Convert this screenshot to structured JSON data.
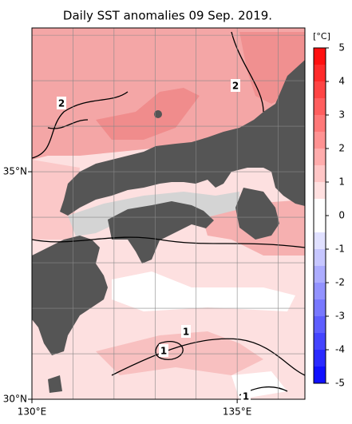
{
  "chart_data": {
    "type": "map",
    "title": "Daily SST anomalies 09 Sep. 2019.",
    "xlim": [
      130,
      136.65
    ],
    "ylim": [
      30,
      38.16
    ],
    "xticks": [
      {
        "value": 130,
        "label": "130°E"
      },
      {
        "value": 135,
        "label": "135°E"
      }
    ],
    "yticks": [
      {
        "value": 30,
        "label": "30°N"
      },
      {
        "value": 35,
        "label": "35°N"
      }
    ],
    "xgrid": [
      131,
      132,
      133,
      134,
      136
    ],
    "ygrid": [
      31,
      32,
      33,
      34,
      36,
      37,
      38
    ],
    "contour_labels": [
      "2",
      "2",
      "1",
      "1",
      "1"
    ],
    "colorbar": {
      "label": "[°C]",
      "range": [
        -5,
        5
      ],
      "ticks": [
        5,
        4,
        3,
        2,
        1,
        0,
        -1,
        -2,
        -3,
        -4,
        -5
      ],
      "colors": [
        "#ff1010",
        "#ff2a2a",
        "#ff4444",
        "#ff5e5e",
        "#ff7878",
        "#ff9292",
        "#ffacac",
        "#ffc6c6",
        "#ffe0e0",
        "#ffffff",
        "#ffffff",
        "#e0e0ff",
        "#c6c6ff",
        "#acacff",
        "#9292ff",
        "#7878ff",
        "#5e5eff",
        "#4444ff",
        "#2a2aff",
        "#1010ff"
      ]
    }
  }
}
